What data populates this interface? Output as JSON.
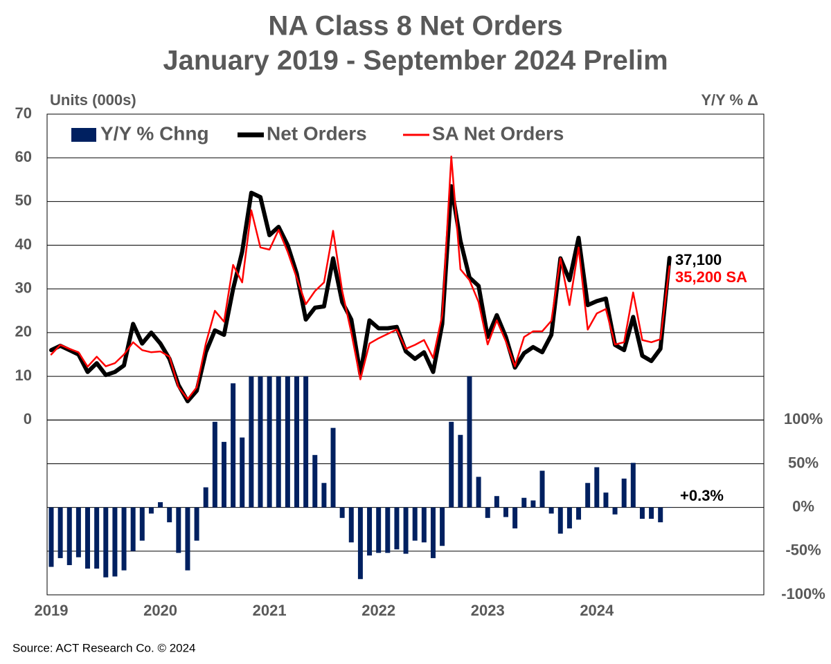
{
  "chart_data": {
    "type": "line",
    "title": "NA Class 8 Net Orders",
    "subtitle": "January 2019 - September 2024 Prelim",
    "y_axis_label": "Units (000s)",
    "y2_axis_label": "Y/Y % Δ",
    "source": "Source: ACT Research Co. © 2024",
    "annotations": [
      "37,100",
      "35,200 SA",
      "+0.3%"
    ],
    "categories": [
      "2019",
      null,
      null,
      null,
      null,
      null,
      null,
      null,
      null,
      null,
      null,
      null,
      "2020",
      null,
      null,
      null,
      null,
      null,
      null,
      null,
      null,
      null,
      null,
      null,
      "2021",
      null,
      null,
      null,
      null,
      null,
      null,
      null,
      null,
      null,
      null,
      null,
      "2022",
      null,
      null,
      null,
      null,
      null,
      null,
      null,
      null,
      null,
      null,
      null,
      "2023",
      null,
      null,
      null,
      null,
      null,
      null,
      null,
      null,
      null,
      null,
      null,
      "2024",
      null,
      null,
      null,
      null,
      null,
      null,
      null,
      null
    ],
    "series": [
      {
        "name": "Y/Y % Chng",
        "type": "bar",
        "axis": "y2",
        "color": "#002060",
        "values": [
          -68,
          -58,
          -66,
          -57,
          -70,
          -70,
          -80,
          -79,
          -72,
          -50,
          -38,
          -7,
          6,
          -17,
          -52,
          -72,
          -38,
          23,
          98,
          75,
          142,
          80,
          150,
          150,
          150,
          150,
          150,
          150,
          150,
          60,
          28,
          91,
          -12,
          -40,
          -82,
          -55,
          -52,
          -52,
          -48,
          -53,
          -38,
          -40,
          -58,
          -44,
          98,
          83,
          150,
          35,
          -12,
          13,
          -11,
          -24,
          11,
          8,
          42,
          -7,
          -30,
          -24,
          -14,
          28,
          46,
          17,
          -8,
          33,
          51,
          -13,
          -13,
          -17,
          0.3
        ]
      },
      {
        "name": "Net Orders",
        "type": "line",
        "color": "#000000",
        "values": [
          16,
          17,
          16,
          15,
          11,
          13,
          10.3,
          11,
          12.5,
          22,
          17.5,
          20,
          17.5,
          14,
          8,
          4.3,
          6.7,
          15.5,
          20.5,
          19.5,
          30,
          38.5,
          52,
          51,
          42.3,
          44.2,
          40,
          33.5,
          23,
          25.7,
          26,
          37,
          27,
          23,
          10.5,
          22.8,
          21,
          21,
          21.3,
          15.7,
          14,
          15.5,
          11,
          22,
          53.5,
          41,
          32.6,
          30.7,
          19,
          24,
          19,
          12,
          15.3,
          16.7,
          15.5,
          19.5,
          37,
          32,
          41.7,
          26.3,
          27.2,
          27.8,
          17.2,
          16,
          23.6,
          14.7,
          13.5,
          16.3,
          37.1
        ]
      },
      {
        "name": "SA Net Orders",
        "type": "line",
        "color": "#ff0000",
        "values": [
          15,
          17.2,
          16.3,
          15.5,
          12.2,
          14.5,
          12.3,
          13,
          15,
          17.8,
          16,
          15.5,
          15.7,
          14.5,
          7.5,
          4.8,
          7.5,
          17.5,
          25,
          22.5,
          35.5,
          31.5,
          48,
          39.5,
          39,
          43.5,
          38.5,
          32.5,
          26.5,
          29.5,
          31.5,
          43.3,
          29.5,
          20,
          9.3,
          17.5,
          18.7,
          19.7,
          20.7,
          16.3,
          17.2,
          18.3,
          14.2,
          24,
          60.3,
          34.5,
          32,
          27,
          17.3,
          22.8,
          18,
          12.3,
          19,
          20.3,
          20.3,
          22.7,
          37,
          26.3,
          39.5,
          20.7,
          24.4,
          25.4,
          17.3,
          17.8,
          29.2,
          18.3,
          17.8,
          18.5,
          35.2
        ]
      }
    ],
    "ylim": [
      -40,
      70
    ],
    "yticks": [
      0,
      10,
      20,
      30,
      40,
      50,
      60,
      70
    ],
    "y2lim": [
      -100,
      450
    ],
    "y2ticks": [
      {
        "value": -100,
        "label": "-100%"
      },
      {
        "value": -50,
        "label": "-50%"
      },
      {
        "value": 0,
        "label": "0%"
      },
      {
        "value": 50,
        "label": "50%"
      },
      {
        "value": 100,
        "label": "100%"
      }
    ],
    "grid": true,
    "legend": "top-left"
  }
}
